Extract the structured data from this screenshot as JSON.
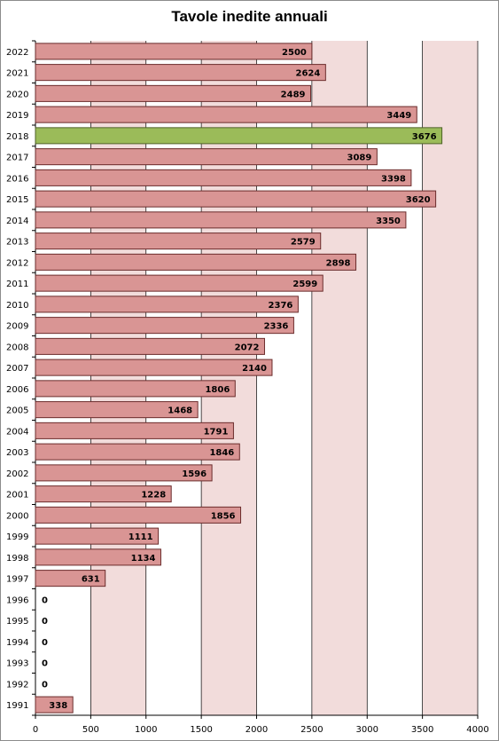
{
  "chart_data": {
    "type": "bar",
    "orientation": "horizontal",
    "title": "Tavole inedite annuali",
    "categories": [
      "2022",
      "2021",
      "2020",
      "2019",
      "2018",
      "2017",
      "2016",
      "2015",
      "2014",
      "2013",
      "2012",
      "2011",
      "2010",
      "2009",
      "2008",
      "2007",
      "2006",
      "2005",
      "2004",
      "2003",
      "2002",
      "2001",
      "2000",
      "1999",
      "1998",
      "1997",
      "1996",
      "1995",
      "1994",
      "1993",
      "1992",
      "1991"
    ],
    "values": [
      2500,
      2624,
      2489,
      3449,
      3676,
      3089,
      3398,
      3620,
      3350,
      2579,
      2898,
      2599,
      2376,
      2336,
      2072,
      2140,
      1806,
      1468,
      1791,
      1846,
      1596,
      1228,
      1856,
      1111,
      1134,
      631,
      0,
      0,
      0,
      0,
      0,
      338
    ],
    "highlight_category": "2018",
    "x_ticks": [
      0,
      500,
      1000,
      1500,
      2000,
      2500,
      3000,
      3500,
      4000
    ],
    "xlim": [
      0,
      4000
    ],
    "xlabel": "",
    "ylabel": "",
    "grid": "vertical",
    "legend": "none",
    "colors": {
      "bar": "#d99594",
      "bar_border": "#6b2c2c",
      "highlight_bar": "#9bbb59",
      "highlight_border": "#4f6228",
      "plot_background_alt": "#f2dcdb",
      "gridline": "#000000"
    }
  }
}
